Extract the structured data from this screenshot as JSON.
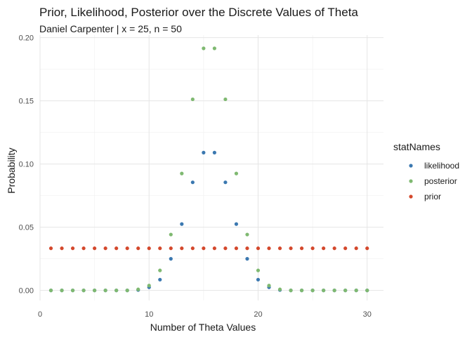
{
  "chart_data": {
    "type": "scatter",
    "title": "Prior, Likelihood, Posterior over the Discrete Values of Theta",
    "subtitle": "Daniel Carpenter | x = 25, n = 50",
    "xlabel": "Number of Theta Values",
    "ylabel": "Probability",
    "xlim": [
      0,
      31.5
    ],
    "ylim": [
      -0.008,
      0.202
    ],
    "x_ticks": [
      0,
      10,
      20,
      30
    ],
    "x_tick_labels": [
      "0",
      "10",
      "20",
      "30"
    ],
    "y_ticks": [
      0,
      0.05,
      0.1,
      0.15,
      0.2
    ],
    "y_tick_labels": [
      "0.00",
      "0.05",
      "0.10",
      "0.15",
      "0.20"
    ],
    "grid": true,
    "legend_title": "statNames",
    "legend_position": "right",
    "x": [
      1,
      2,
      3,
      4,
      5,
      6,
      7,
      8,
      9,
      10,
      11,
      12,
      13,
      14,
      15,
      16,
      17,
      18,
      19,
      20,
      21,
      22,
      23,
      24,
      25,
      26,
      27,
      28,
      29,
      30
    ],
    "series": [
      {
        "name": "likelihood",
        "color": "#3b78b0",
        "values": [
          0,
          0,
          0,
          0,
          0,
          0,
          0,
          0,
          0.0003,
          0.0025,
          0.0085,
          0.025,
          0.0525,
          0.0855,
          0.109,
          0.109,
          0.0855,
          0.0525,
          0.025,
          0.0085,
          0.0025,
          0.0003,
          0,
          0,
          0,
          0,
          0,
          0,
          0,
          0
        ]
      },
      {
        "name": "posterior",
        "color": "#7fb971",
        "values": [
          0,
          0,
          0,
          0,
          0,
          0,
          0,
          0,
          0.0008,
          0.0038,
          0.0158,
          0.0442,
          0.0925,
          0.1512,
          0.1915,
          0.1915,
          0.1512,
          0.0925,
          0.0442,
          0.0158,
          0.0038,
          0.0008,
          0,
          0,
          0,
          0,
          0,
          0,
          0,
          0
        ]
      },
      {
        "name": "prior",
        "color": "#d4482c",
        "values": [
          0.0333,
          0.0333,
          0.0333,
          0.0333,
          0.0333,
          0.0333,
          0.0333,
          0.0333,
          0.0333,
          0.0333,
          0.0333,
          0.0333,
          0.0333,
          0.0333,
          0.0333,
          0.0333,
          0.0333,
          0.0333,
          0.0333,
          0.0333,
          0.0333,
          0.0333,
          0.0333,
          0.0333,
          0.0333,
          0.0333,
          0.0333,
          0.0333,
          0.0333,
          0.0333
        ]
      }
    ],
    "draw_order": [
      "prior",
      "likelihood",
      "posterior"
    ]
  }
}
